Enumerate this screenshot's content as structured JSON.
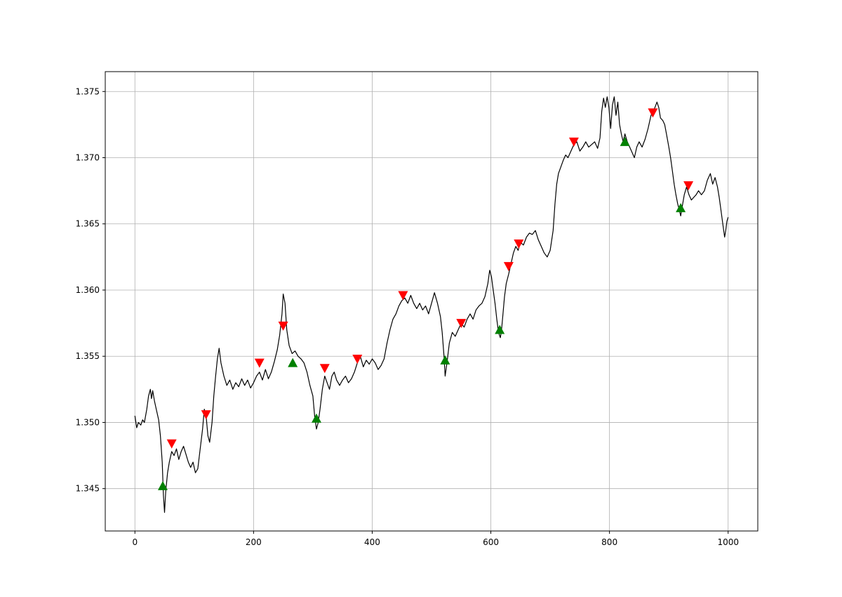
{
  "chart_data": {
    "type": "line",
    "title": "",
    "xlabel": "",
    "ylabel": "",
    "xlim": [
      -50,
      1050
    ],
    "ylim": [
      1.3418,
      1.3765
    ],
    "grid": true,
    "x_ticks": [
      {
        "value": 0,
        "label": "0"
      },
      {
        "value": 200,
        "label": "200"
      },
      {
        "value": 400,
        "label": "400"
      },
      {
        "value": 600,
        "label": "600"
      },
      {
        "value": 800,
        "label": "800"
      },
      {
        "value": 1000,
        "label": "1000"
      }
    ],
    "y_ticks": [
      {
        "value": 1.345,
        "label": "1.345"
      },
      {
        "value": 1.35,
        "label": "1.350"
      },
      {
        "value": 1.355,
        "label": "1.355"
      },
      {
        "value": 1.36,
        "label": "1.360"
      },
      {
        "value": 1.365,
        "label": "1.365"
      },
      {
        "value": 1.37,
        "label": "1.370"
      },
      {
        "value": 1.375,
        "label": "1.375"
      }
    ],
    "series": [
      {
        "color": "#000000",
        "points": [
          [
            0,
            1.3505
          ],
          [
            3,
            1.3496
          ],
          [
            6,
            1.35
          ],
          [
            10,
            1.3498
          ],
          [
            13,
            1.3502
          ],
          [
            16,
            1.35
          ],
          [
            20,
            1.351
          ],
          [
            23,
            1.352
          ],
          [
            26,
            1.3525
          ],
          [
            28,
            1.3518
          ],
          [
            30,
            1.3524
          ],
          [
            33,
            1.3516
          ],
          [
            36,
            1.351
          ],
          [
            40,
            1.3502
          ],
          [
            43,
            1.349
          ],
          [
            46,
            1.347
          ],
          [
            48,
            1.3445
          ],
          [
            50,
            1.3432
          ],
          [
            52,
            1.3448
          ],
          [
            55,
            1.3462
          ],
          [
            58,
            1.347
          ],
          [
            62,
            1.3478
          ],
          [
            66,
            1.3475
          ],
          [
            70,
            1.348
          ],
          [
            74,
            1.3472
          ],
          [
            78,
            1.3478
          ],
          [
            82,
            1.3482
          ],
          [
            86,
            1.3476
          ],
          [
            90,
            1.347
          ],
          [
            94,
            1.3466
          ],
          [
            98,
            1.347
          ],
          [
            102,
            1.3462
          ],
          [
            106,
            1.3465
          ],
          [
            110,
            1.348
          ],
          [
            114,
            1.3495
          ],
          [
            117,
            1.351
          ],
          [
            120,
            1.3505
          ],
          [
            123,
            1.349
          ],
          [
            126,
            1.3485
          ],
          [
            130,
            1.35
          ],
          [
            133,
            1.352
          ],
          [
            136,
            1.3535
          ],
          [
            139,
            1.3548
          ],
          [
            142,
            1.3556
          ],
          [
            145,
            1.3545
          ],
          [
            150,
            1.3535
          ],
          [
            155,
            1.3528
          ],
          [
            160,
            1.3532
          ],
          [
            165,
            1.3525
          ],
          [
            170,
            1.353
          ],
          [
            175,
            1.3527
          ],
          [
            180,
            1.3533
          ],
          [
            185,
            1.3528
          ],
          [
            190,
            1.3532
          ],
          [
            195,
            1.3526
          ],
          [
            200,
            1.353
          ],
          [
            205,
            1.3535
          ],
          [
            210,
            1.3538
          ],
          [
            215,
            1.3532
          ],
          [
            220,
            1.354
          ],
          [
            225,
            1.3533
          ],
          [
            230,
            1.3538
          ],
          [
            235,
            1.3546
          ],
          [
            240,
            1.3555
          ],
          [
            244,
            1.3566
          ],
          [
            248,
            1.3582
          ],
          [
            250,
            1.3597
          ],
          [
            253,
            1.359
          ],
          [
            256,
            1.357
          ],
          [
            260,
            1.3558
          ],
          [
            265,
            1.3552
          ],
          [
            270,
            1.3554
          ],
          [
            275,
            1.355
          ],
          [
            280,
            1.3548
          ],
          [
            285,
            1.3545
          ],
          [
            290,
            1.3538
          ],
          [
            295,
            1.3528
          ],
          [
            300,
            1.352
          ],
          [
            303,
            1.3505
          ],
          [
            306,
            1.3495
          ],
          [
            309,
            1.35
          ],
          [
            312,
            1.351
          ],
          [
            316,
            1.3525
          ],
          [
            320,
            1.3535
          ],
          [
            324,
            1.353
          ],
          [
            328,
            1.3525
          ],
          [
            332,
            1.3535
          ],
          [
            336,
            1.3538
          ],
          [
            340,
            1.3532
          ],
          [
            345,
            1.3528
          ],
          [
            350,
            1.3532
          ],
          [
            355,
            1.3535
          ],
          [
            360,
            1.353
          ],
          [
            365,
            1.3533
          ],
          [
            370,
            1.3538
          ],
          [
            375,
            1.3545
          ],
          [
            380,
            1.355
          ],
          [
            385,
            1.3542
          ],
          [
            390,
            1.3547
          ],
          [
            395,
            1.3544
          ],
          [
            400,
            1.3548
          ],
          [
            405,
            1.3545
          ],
          [
            410,
            1.354
          ],
          [
            415,
            1.3543
          ],
          [
            420,
            1.3548
          ],
          [
            425,
            1.356
          ],
          [
            430,
            1.357
          ],
          [
            435,
            1.3578
          ],
          [
            440,
            1.3582
          ],
          [
            445,
            1.3588
          ],
          [
            450,
            1.3592
          ],
          [
            455,
            1.3594
          ],
          [
            460,
            1.359
          ],
          [
            465,
            1.3596
          ],
          [
            470,
            1.359
          ],
          [
            475,
            1.3586
          ],
          [
            480,
            1.359
          ],
          [
            485,
            1.3585
          ],
          [
            490,
            1.3588
          ],
          [
            495,
            1.3582
          ],
          [
            500,
            1.359
          ],
          [
            505,
            1.3598
          ],
          [
            510,
            1.359
          ],
          [
            515,
            1.358
          ],
          [
            518,
            1.3568
          ],
          [
            521,
            1.355
          ],
          [
            523,
            1.3535
          ],
          [
            526,
            1.3545
          ],
          [
            530,
            1.356
          ],
          [
            535,
            1.3568
          ],
          [
            540,
            1.3565
          ],
          [
            545,
            1.357
          ],
          [
            550,
            1.3575
          ],
          [
            555,
            1.3572
          ],
          [
            560,
            1.3578
          ],
          [
            565,
            1.3582
          ],
          [
            570,
            1.3578
          ],
          [
            575,
            1.3585
          ],
          [
            580,
            1.3588
          ],
          [
            585,
            1.359
          ],
          [
            590,
            1.3595
          ],
          [
            595,
            1.3605
          ],
          [
            598,
            1.3615
          ],
          [
            601,
            1.361
          ],
          [
            604,
            1.36
          ],
          [
            607,
            1.359
          ],
          [
            610,
            1.3578
          ],
          [
            613,
            1.3568
          ],
          [
            616,
            1.3564
          ],
          [
            618,
            1.357
          ],
          [
            620,
            1.358
          ],
          [
            623,
            1.3595
          ],
          [
            626,
            1.3605
          ],
          [
            630,
            1.3612
          ],
          [
            634,
            1.362
          ],
          [
            638,
            1.3628
          ],
          [
            642,
            1.3633
          ],
          [
            646,
            1.363
          ],
          [
            650,
            1.3636
          ],
          [
            655,
            1.3634
          ],
          [
            660,
            1.364
          ],
          [
            665,
            1.3643
          ],
          [
            670,
            1.3642
          ],
          [
            675,
            1.3645
          ],
          [
            680,
            1.3638
          ],
          [
            685,
            1.3633
          ],
          [
            690,
            1.3628
          ],
          [
            695,
            1.3625
          ],
          [
            700,
            1.363
          ],
          [
            705,
            1.3645
          ],
          [
            708,
            1.3665
          ],
          [
            711,
            1.368
          ],
          [
            714,
            1.3688
          ],
          [
            718,
            1.3693
          ],
          [
            722,
            1.3698
          ],
          [
            726,
            1.3702
          ],
          [
            730,
            1.37
          ],
          [
            735,
            1.3705
          ],
          [
            740,
            1.371
          ],
          [
            745,
            1.3712
          ],
          [
            750,
            1.3705
          ],
          [
            755,
            1.3708
          ],
          [
            760,
            1.3712
          ],
          [
            765,
            1.3708
          ],
          [
            770,
            1.371
          ],
          [
            775,
            1.3712
          ],
          [
            780,
            1.3707
          ],
          [
            784,
            1.3715
          ],
          [
            787,
            1.3735
          ],
          [
            790,
            1.3745
          ],
          [
            793,
            1.3738
          ],
          [
            796,
            1.3746
          ],
          [
            799,
            1.3738
          ],
          [
            802,
            1.3722
          ],
          [
            805,
            1.374
          ],
          [
            808,
            1.3746
          ],
          [
            811,
            1.3732
          ],
          [
            814,
            1.3742
          ],
          [
            817,
            1.3725
          ],
          [
            820,
            1.3718
          ],
          [
            823,
            1.3712
          ],
          [
            826,
            1.3718
          ],
          [
            830,
            1.3712
          ],
          [
            834,
            1.3708
          ],
          [
            838,
            1.3704
          ],
          [
            842,
            1.37
          ],
          [
            846,
            1.3708
          ],
          [
            850,
            1.3712
          ],
          [
            855,
            1.3708
          ],
          [
            860,
            1.3714
          ],
          [
            865,
            1.3722
          ],
          [
            870,
            1.3732
          ],
          [
            875,
            1.3736
          ],
          [
            880,
            1.3742
          ],
          [
            883,
            1.3738
          ],
          [
            886,
            1.373
          ],
          [
            890,
            1.3728
          ],
          [
            893,
            1.3725
          ],
          [
            896,
            1.3718
          ],
          [
            900,
            1.3708
          ],
          [
            903,
            1.37
          ],
          [
            906,
            1.369
          ],
          [
            909,
            1.368
          ],
          [
            912,
            1.3672
          ],
          [
            915,
            1.3665
          ],
          [
            918,
            1.366
          ],
          [
            920,
            1.3656
          ],
          [
            923,
            1.3664
          ],
          [
            926,
            1.3672
          ],
          [
            930,
            1.3678
          ],
          [
            934,
            1.3672
          ],
          [
            938,
            1.3668
          ],
          [
            942,
            1.367
          ],
          [
            946,
            1.3672
          ],
          [
            950,
            1.3675
          ],
          [
            955,
            1.3672
          ],
          [
            960,
            1.3675
          ],
          [
            965,
            1.3683
          ],
          [
            970,
            1.3688
          ],
          [
            974,
            1.368
          ],
          [
            978,
            1.3685
          ],
          [
            982,
            1.3678
          ],
          [
            985,
            1.367
          ],
          [
            988,
            1.366
          ],
          [
            991,
            1.365
          ],
          [
            994,
            1.364
          ],
          [
            996,
            1.3645
          ],
          [
            998,
            1.3652
          ],
          [
            1000,
            1.3655
          ]
        ]
      }
    ],
    "markers": [
      {
        "type": "down",
        "color": "#ff0000",
        "points": [
          [
            62,
            1.3484
          ],
          [
            120,
            1.3506
          ],
          [
            210,
            1.3545
          ],
          [
            250,
            1.3573
          ],
          [
            320,
            1.3541
          ],
          [
            375,
            1.3548
          ],
          [
            452,
            1.3596
          ],
          [
            550,
            1.3575
          ],
          [
            630,
            1.3618
          ],
          [
            647,
            1.3635
          ],
          [
            740,
            1.3712
          ],
          [
            873,
            1.3734
          ],
          [
            933,
            1.3679
          ]
        ]
      },
      {
        "type": "up",
        "color": "#008000",
        "points": [
          [
            47,
            1.3452
          ],
          [
            266,
            1.3545
          ],
          [
            306,
            1.3503
          ],
          [
            523,
            1.3547
          ],
          [
            615,
            1.357
          ],
          [
            826,
            1.3712
          ],
          [
            920,
            1.3662
          ]
        ]
      }
    ]
  }
}
